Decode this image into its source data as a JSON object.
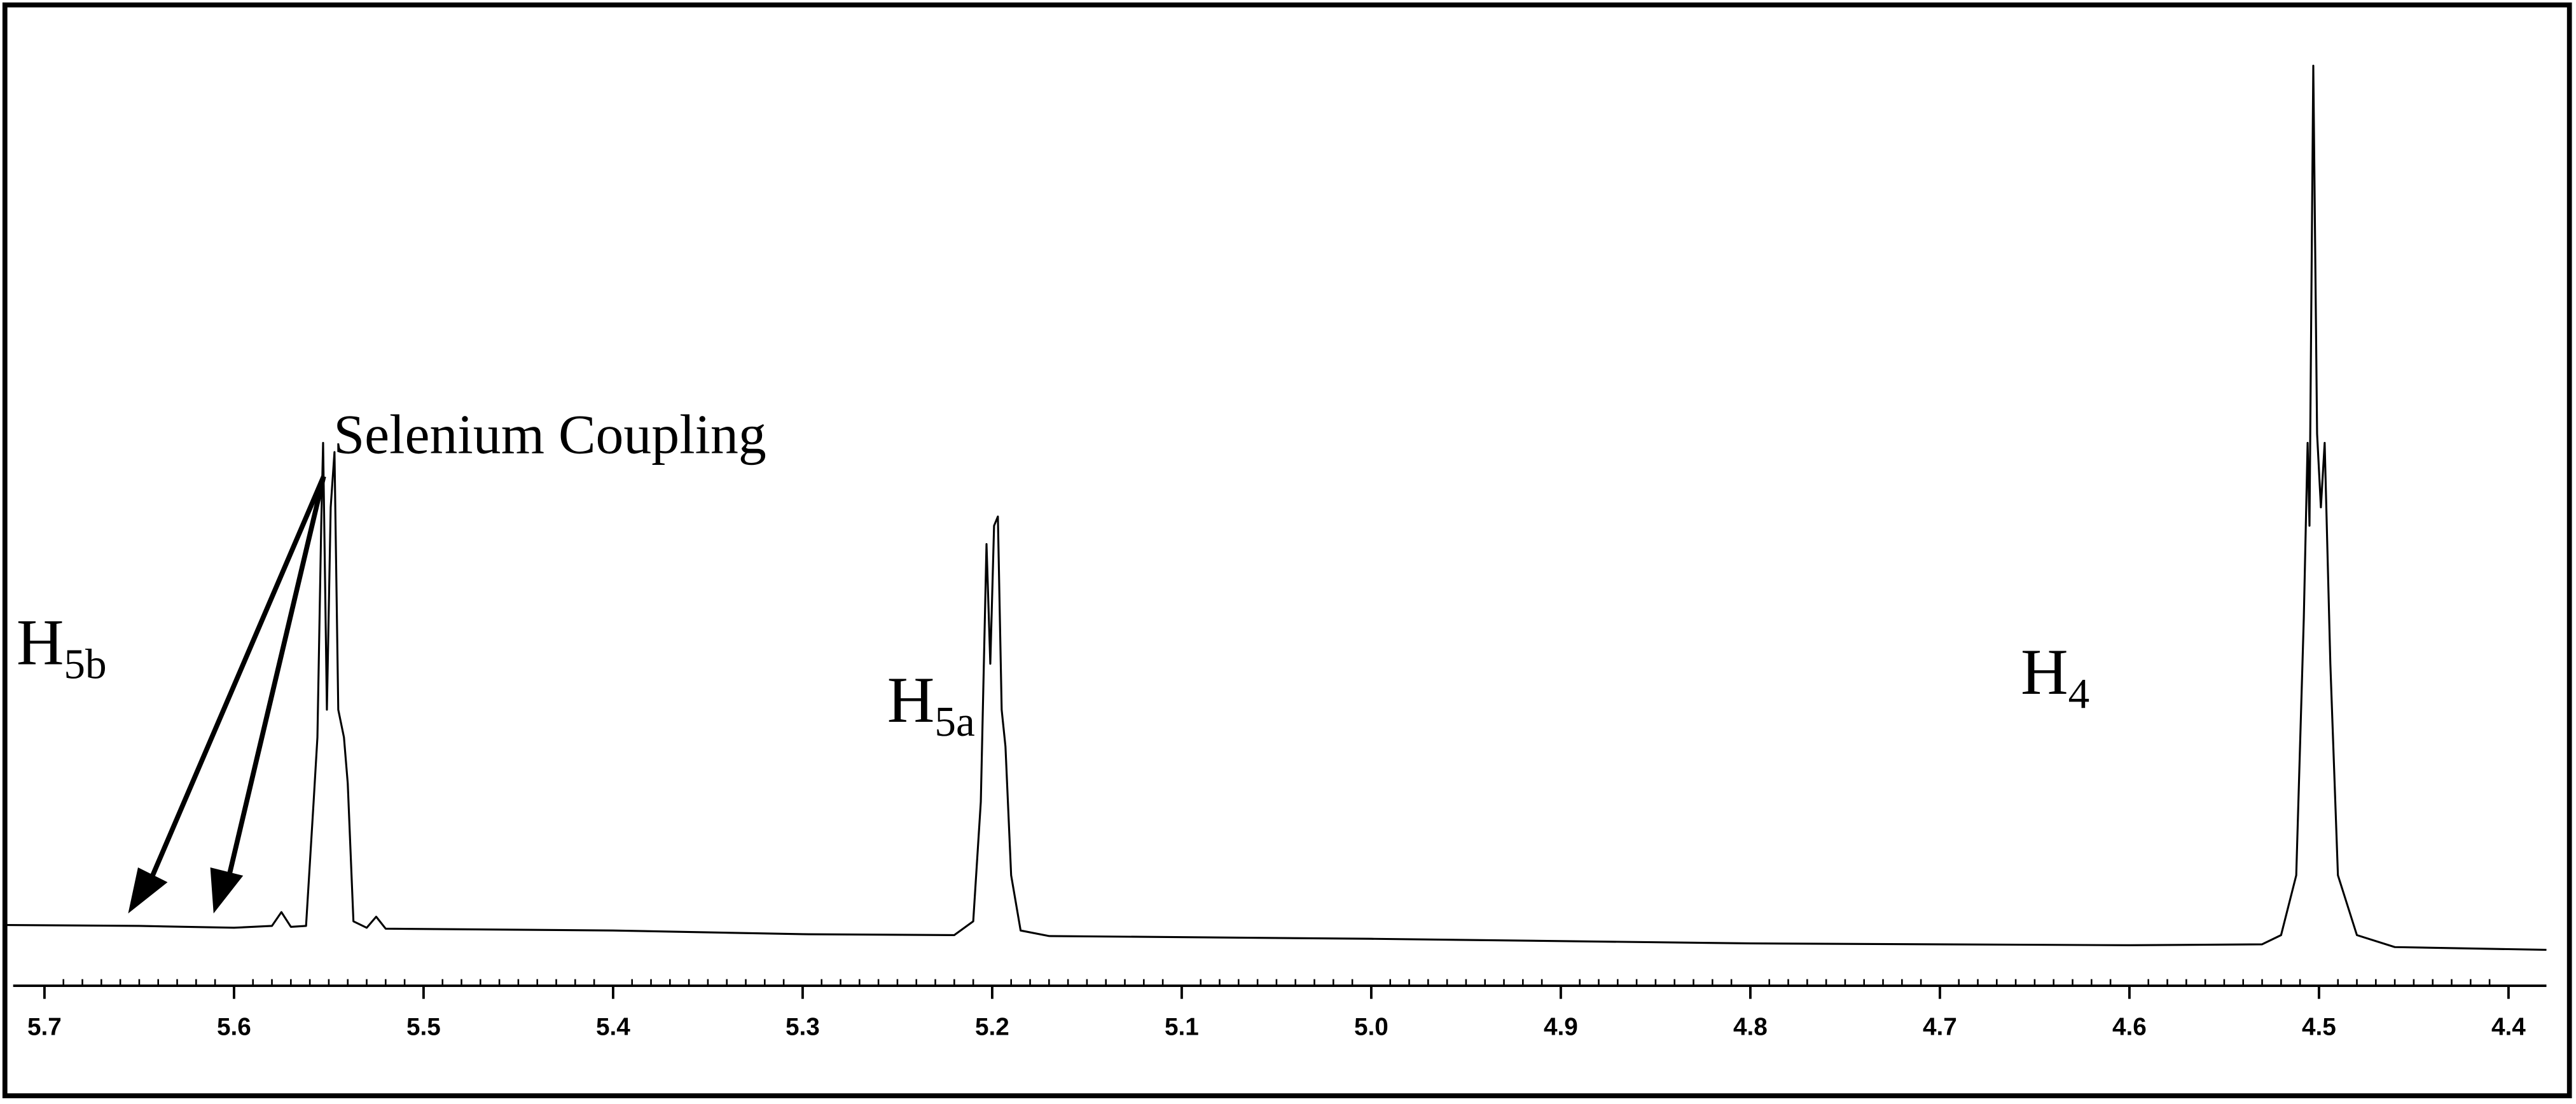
{
  "chart_data": {
    "type": "line",
    "x": [
      5.72,
      5.65,
      5.6,
      5.58,
      5.575,
      5.57,
      5.562,
      5.558,
      5.556,
      5.554,
      5.553,
      5.551,
      5.549,
      5.547,
      5.545,
      5.542,
      5.54,
      5.537,
      5.53,
      5.525,
      5.52,
      5.4,
      5.3,
      5.22,
      5.21,
      5.206,
      5.203,
      5.201,
      5.199,
      5.197,
      5.195,
      5.193,
      5.19,
      5.185,
      5.17,
      5.0,
      4.8,
      4.6,
      4.53,
      4.52,
      4.512,
      4.508,
      4.506,
      4.505,
      4.503,
      4.501,
      4.499,
      4.497,
      4.494,
      4.49,
      4.48,
      4.46,
      4.38
    ],
    "values": [
      6.6,
      6.5,
      6.3,
      6.5,
      8.0,
      6.4,
      6.5,
      20,
      27,
      50,
      59,
      30,
      52,
      58,
      30,
      27,
      22,
      7,
      6.3,
      7.5,
      6.2,
      6.0,
      5.6,
      5.5,
      7,
      20,
      48,
      35,
      50,
      51,
      30,
      26,
      12,
      6,
      5.4,
      5.1,
      4.6,
      4.4,
      4.5,
      5.5,
      12,
      40,
      59,
      50,
      100,
      60,
      52,
      59,
      35,
      12,
      5.5,
      4.2,
      3.9
    ],
    "color": "#000000",
    "xlim": [
      5.72,
      4.38
    ],
    "ylim": [
      0,
      100
    ],
    "xticks": [
      5.7,
      5.6,
      5.5,
      5.4,
      5.3,
      5.2,
      5.1,
      {
        "value": 5,
        "label": "5.0"
      },
      4.9,
      4.8,
      4.7,
      4.6,
      4.5,
      4.4
    ],
    "annotations": [
      {
        "text": "Selenium Coupling"
      },
      {
        "text": "H",
        "subscript": "5b"
      },
      {
        "text": "H",
        "subscript": "5a"
      },
      {
        "text": "H",
        "subscript": "4"
      }
    ]
  }
}
